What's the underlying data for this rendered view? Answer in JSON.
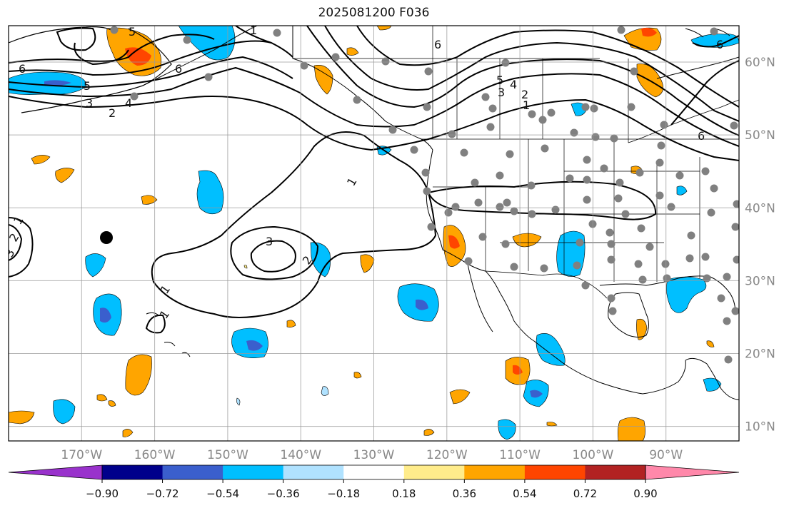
{
  "title": "2025081200 F036",
  "map": {
    "extent": {
      "lon_min": -180,
      "lon_max": -80,
      "lat_min": 8,
      "lat_max": 65
    },
    "lon_ticks": [
      {
        "lon": -170,
        "label": "170°W"
      },
      {
        "lon": -160,
        "label": "160°W"
      },
      {
        "lon": -150,
        "label": "150°W"
      },
      {
        "lon": -140,
        "label": "140°W"
      },
      {
        "lon": -130,
        "label": "130°W"
      },
      {
        "lon": -120,
        "label": "120°W"
      },
      {
        "lon": -110,
        "label": "110°W"
      },
      {
        "lon": -100,
        "label": "100°W"
      },
      {
        "lon": -90,
        "label": "90°W"
      }
    ],
    "lat_ticks": [
      {
        "lat": 60,
        "label": "60°N"
      },
      {
        "lat": 50,
        "label": "50°N"
      },
      {
        "lat": 40,
        "label": "40°N"
      },
      {
        "lat": 30,
        "label": "30°N"
      },
      {
        "lat": 20,
        "label": "20°N"
      },
      {
        "lat": 10,
        "label": "10°N"
      }
    ],
    "gridlines": true,
    "contour_labels": [
      "1",
      "2",
      "3",
      "4",
      "5",
      "6"
    ]
  },
  "colorbar": {
    "colors": [
      "#9932CC",
      "#00008B",
      "#3A5FCD",
      "#00BFFF",
      "#B0E2FF",
      "#FFFFFF",
      "#FFEC8B",
      "#FFA500",
      "#FF4500",
      "#B22222",
      "#FF88AA"
    ],
    "ticks": [
      "−0.90",
      "−0.72",
      "−0.54",
      "−0.36",
      "−0.18",
      "0.18",
      "0.36",
      "0.54",
      "0.72",
      "0.90"
    ]
  }
}
